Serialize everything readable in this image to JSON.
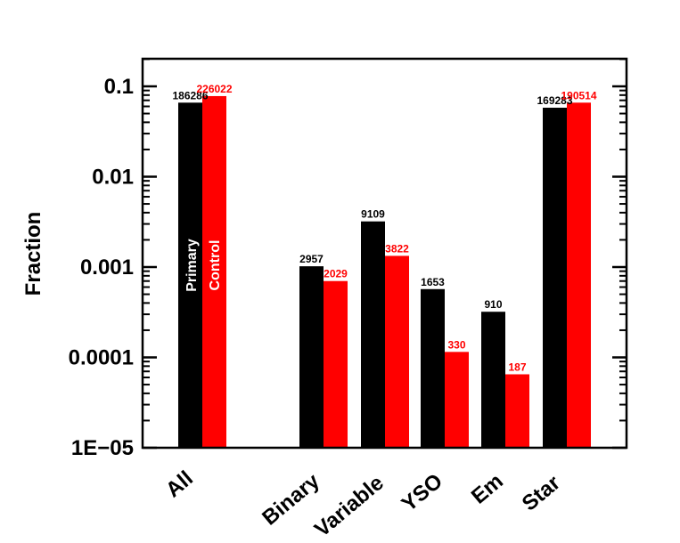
{
  "chart_data": {
    "type": "bar",
    "ylabel": "Fraction",
    "xlabel": "",
    "yscale": "log",
    "ylim": [
      1e-05,
      0.2
    ],
    "yticks": [
      {
        "value": 0.1,
        "label": "0.1"
      },
      {
        "value": 0.01,
        "label": "0.01"
      },
      {
        "value": 0.001,
        "label": "0.001"
      },
      {
        "value": 0.0001,
        "label": "0.0001"
      },
      {
        "value": 1e-05,
        "label": "1E−05"
      }
    ],
    "categories": [
      "All",
      "Binary",
      "Variable",
      "YSO",
      "Em",
      "Star"
    ],
    "series": [
      {
        "name": "Primary",
        "color": "#000000",
        "values": [
          0.066,
          0.00102,
          0.0032,
          0.00057,
          0.00032,
          0.058
        ],
        "counts": [
          "186286",
          "2957",
          "9109",
          "1653",
          "910",
          "169283"
        ]
      },
      {
        "name": "Control",
        "color": "#ff0000",
        "values": [
          0.078,
          0.0007,
          0.00133,
          0.000115,
          6.5e-05,
          0.066
        ],
        "counts": [
          "226022",
          "2029",
          "3822",
          "330",
          "187",
          "190514"
        ]
      }
    ],
    "grid": false,
    "legend": "vertical text inside first category bars"
  }
}
